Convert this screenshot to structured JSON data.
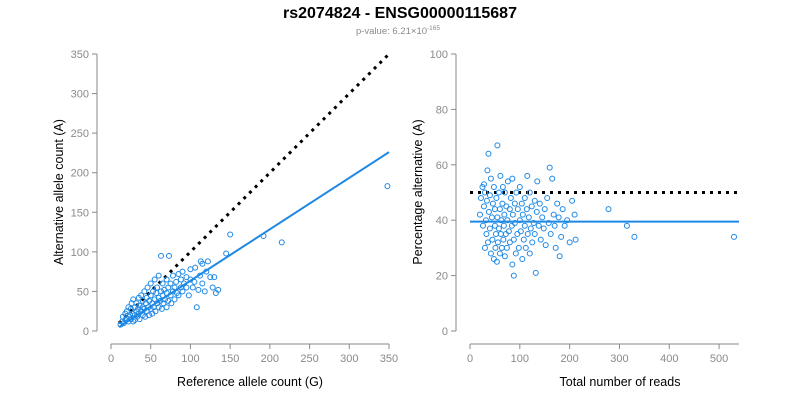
{
  "figure": {
    "title": "rs2074824 - ENSG00000115687",
    "subtitle_prefix": "p-value: 6.21×10",
    "subtitle_exponent": "-165"
  },
  "chart_data": [
    {
      "type": "scatter",
      "xlabel": "Reference allele count (G)",
      "ylabel": "Alternative allele count (A)",
      "xlim": [
        0,
        350
      ],
      "ylim": [
        0,
        350
      ],
      "xticks": [
        0,
        50,
        100,
        150,
        200,
        250,
        300,
        350
      ],
      "yticks": [
        0,
        50,
        100,
        150,
        200,
        250,
        300,
        350
      ],
      "point_color": "#1e88e5",
      "fit_line": {
        "color": "#1e88e5",
        "x": [
          10,
          350
        ],
        "y": [
          5,
          226
        ]
      },
      "reference_line": {
        "color": "#000000",
        "style": "dotted",
        "x": [
          10,
          350
        ],
        "y": [
          10,
          350
        ]
      },
      "points": [
        [
          12,
          8
        ],
        [
          14,
          12
        ],
        [
          15,
          18
        ],
        [
          16,
          10
        ],
        [
          18,
          14
        ],
        [
          18,
          22
        ],
        [
          20,
          16
        ],
        [
          20,
          25
        ],
        [
          22,
          12
        ],
        [
          22,
          30
        ],
        [
          23,
          18
        ],
        [
          24,
          20
        ],
        [
          25,
          15
        ],
        [
          25,
          28
        ],
        [
          26,
          35
        ],
        [
          27,
          22
        ],
        [
          28,
          12
        ],
        [
          28,
          40
        ],
        [
          30,
          20
        ],
        [
          30,
          30
        ],
        [
          30,
          14
        ],
        [
          32,
          25
        ],
        [
          32,
          35
        ],
        [
          33,
          18
        ],
        [
          34,
          28
        ],
        [
          35,
          22
        ],
        [
          35,
          42
        ],
        [
          36,
          15
        ],
        [
          36,
          32
        ],
        [
          38,
          25
        ],
        [
          38,
          45
        ],
        [
          40,
          20
        ],
        [
          40,
          30
        ],
        [
          40,
          38
        ],
        [
          42,
          28
        ],
        [
          42,
          50
        ],
        [
          43,
          18
        ],
        [
          44,
          35
        ],
        [
          45,
          25
        ],
        [
          45,
          42
        ],
        [
          46,
          55
        ],
        [
          47,
          30
        ],
        [
          48,
          20
        ],
        [
          48,
          38
        ],
        [
          50,
          28
        ],
        [
          50,
          45
        ],
        [
          50,
          60
        ],
        [
          52,
          35
        ],
        [
          52,
          22
        ],
        [
          53,
          50
        ],
        [
          54,
          30
        ],
        [
          55,
          40
        ],
        [
          55,
          65
        ],
        [
          56,
          25
        ],
        [
          57,
          48
        ],
        [
          58,
          35
        ],
        [
          58,
          55
        ],
        [
          60,
          30
        ],
        [
          60,
          42
        ],
        [
          60,
          70
        ],
        [
          62,
          38
        ],
        [
          63,
          50
        ],
        [
          63,
          95
        ],
        [
          64,
          28
        ],
        [
          65,
          45
        ],
        [
          65,
          60
        ],
        [
          66,
          35
        ],
        [
          67,
          52
        ],
        [
          68,
          40
        ],
        [
          70,
          30
        ],
        [
          70,
          48
        ],
        [
          70,
          65
        ],
        [
          72,
          38
        ],
        [
          72,
          55
        ],
        [
          73,
          95
        ],
        [
          75,
          45
        ],
        [
          75,
          60
        ],
        [
          76,
          35
        ],
        [
          78,
          50
        ],
        [
          78,
          70
        ],
        [
          80,
          40
        ],
        [
          80,
          55
        ],
        [
          82,
          62
        ],
        [
          83,
          48
        ],
        [
          85,
          45
        ],
        [
          85,
          72
        ],
        [
          88,
          55
        ],
        [
          88,
          65
        ],
        [
          90,
          50
        ],
        [
          90,
          75
        ],
        [
          92,
          60
        ],
        [
          95,
          55
        ],
        [
          95,
          68
        ],
        [
          98,
          45
        ],
        [
          100,
          65
        ],
        [
          100,
          78
        ],
        [
          103,
          55
        ],
        [
          105,
          62
        ],
        [
          106,
          80
        ],
        [
          108,
          30
        ],
        [
          110,
          52
        ],
        [
          112,
          70
        ],
        [
          113,
          88
        ],
        [
          115,
          60
        ],
        [
          115,
          85
        ],
        [
          118,
          50
        ],
        [
          120,
          75
        ],
        [
          122,
          88
        ],
        [
          125,
          68
        ],
        [
          128,
          55
        ],
        [
          130,
          68
        ],
        [
          132,
          48
        ],
        [
          135,
          52
        ],
        [
          150,
          122
        ],
        [
          192,
          120
        ],
        [
          215,
          112
        ],
        [
          348,
          183
        ],
        [
          145,
          98
        ]
      ]
    },
    {
      "type": "scatter",
      "xlabel": "Total number of reads",
      "ylabel": "Percentage alternative (A)",
      "xlim": [
        0,
        540
      ],
      "ylim": [
        0,
        100
      ],
      "xticks": [
        0,
        100,
        200,
        300,
        400,
        500
      ],
      "yticks": [
        0,
        20,
        40,
        60,
        80,
        100
      ],
      "point_color": "#1e88e5",
      "fit_line": {
        "color": "#1e88e5",
        "x": [
          0,
          540
        ],
        "y": [
          39.5,
          39.5
        ]
      },
      "reference_line": {
        "color": "#000000",
        "style": "dotted",
        "x": [
          0,
          540
        ],
        "y": [
          50,
          50
        ]
      },
      "points": [
        [
          20,
          42
        ],
        [
          22,
          48
        ],
        [
          25,
          52
        ],
        [
          26,
          38
        ],
        [
          28,
          45
        ],
        [
          28,
          53
        ],
        [
          30,
          30
        ],
        [
          30,
          50
        ],
        [
          32,
          40
        ],
        [
          33,
          35
        ],
        [
          34,
          47
        ],
        [
          35,
          58
        ],
        [
          36,
          32
        ],
        [
          37,
          64
        ],
        [
          38,
          43
        ],
        [
          40,
          37
        ],
        [
          40,
          49
        ],
        [
          42,
          28
        ],
        [
          42,
          55
        ],
        [
          44,
          41
        ],
        [
          45,
          33
        ],
        [
          46,
          46
        ],
        [
          48,
          26
        ],
        [
          48,
          52
        ],
        [
          50,
          38
        ],
        [
          50,
          44
        ],
        [
          51,
          30
        ],
        [
          52,
          35
        ],
        [
          53,
          48
        ],
        [
          54,
          25
        ],
        [
          55,
          41
        ],
        [
          55,
          67
        ],
        [
          56,
          32
        ],
        [
          58,
          37
        ],
        [
          58,
          50
        ],
        [
          60,
          28
        ],
        [
          60,
          44
        ],
        [
          61,
          56
        ],
        [
          62,
          35
        ],
        [
          63,
          40
        ],
        [
          64,
          30
        ],
        [
          65,
          46
        ],
        [
          66,
          52
        ],
        [
          67,
          33
        ],
        [
          68,
          38
        ],
        [
          69,
          42
        ],
        [
          70,
          27
        ],
        [
          70,
          50
        ],
        [
          72,
          35
        ],
        [
          73,
          45
        ],
        [
          74,
          30
        ],
        [
          75,
          40
        ],
        [
          76,
          54
        ],
        [
          78,
          36
        ],
        [
          80,
          44
        ],
        [
          80,
          32
        ],
        [
          82,
          48
        ],
        [
          84,
          38
        ],
        [
          85,
          24
        ],
        [
          85,
          55
        ],
        [
          86,
          42
        ],
        [
          88,
          20
        ],
        [
          88,
          33
        ],
        [
          90,
          46
        ],
        [
          90,
          39
        ],
        [
          92,
          28
        ],
        [
          93,
          50
        ],
        [
          95,
          35
        ],
        [
          96,
          44
        ],
        [
          98,
          30
        ],
        [
          100,
          40
        ],
        [
          100,
          52
        ],
        [
          102,
          36
        ],
        [
          104,
          46
        ],
        [
          105,
          26
        ],
        [
          106,
          42
        ],
        [
          108,
          33
        ],
        [
          110,
          48
        ],
        [
          110,
          38
        ],
        [
          112,
          30
        ],
        [
          114,
          44
        ],
        [
          115,
          56
        ],
        [
          116,
          35
        ],
        [
          118,
          41
        ],
        [
          120,
          50
        ],
        [
          120,
          28
        ],
        [
          122,
          37
        ],
        [
          124,
          45
        ],
        [
          125,
          32
        ],
        [
          128,
          39
        ],
        [
          130,
          47
        ],
        [
          130,
          35
        ],
        [
          132,
          21
        ],
        [
          134,
          43
        ],
        [
          135,
          54
        ],
        [
          138,
          38
        ],
        [
          140,
          46
        ],
        [
          142,
          33
        ],
        [
          145,
          41
        ],
        [
          148,
          37
        ],
        [
          150,
          44
        ],
        [
          152,
          31
        ],
        [
          155,
          48
        ],
        [
          158,
          39
        ],
        [
          160,
          59
        ],
        [
          162,
          35
        ],
        [
          165,
          55
        ],
        [
          168,
          42
        ],
        [
          170,
          38
        ],
        [
          172,
          30
        ],
        [
          175,
          46
        ],
        [
          178,
          41
        ],
        [
          180,
          27
        ],
        [
          183,
          34
        ],
        [
          186,
          44
        ],
        [
          190,
          38
        ],
        [
          195,
          40
        ],
        [
          200,
          32
        ],
        [
          205,
          47
        ],
        [
          210,
          42
        ],
        [
          212,
          33
        ],
        [
          278,
          44
        ],
        [
          315,
          38
        ],
        [
          330,
          34
        ],
        [
          530,
          34
        ]
      ]
    }
  ]
}
